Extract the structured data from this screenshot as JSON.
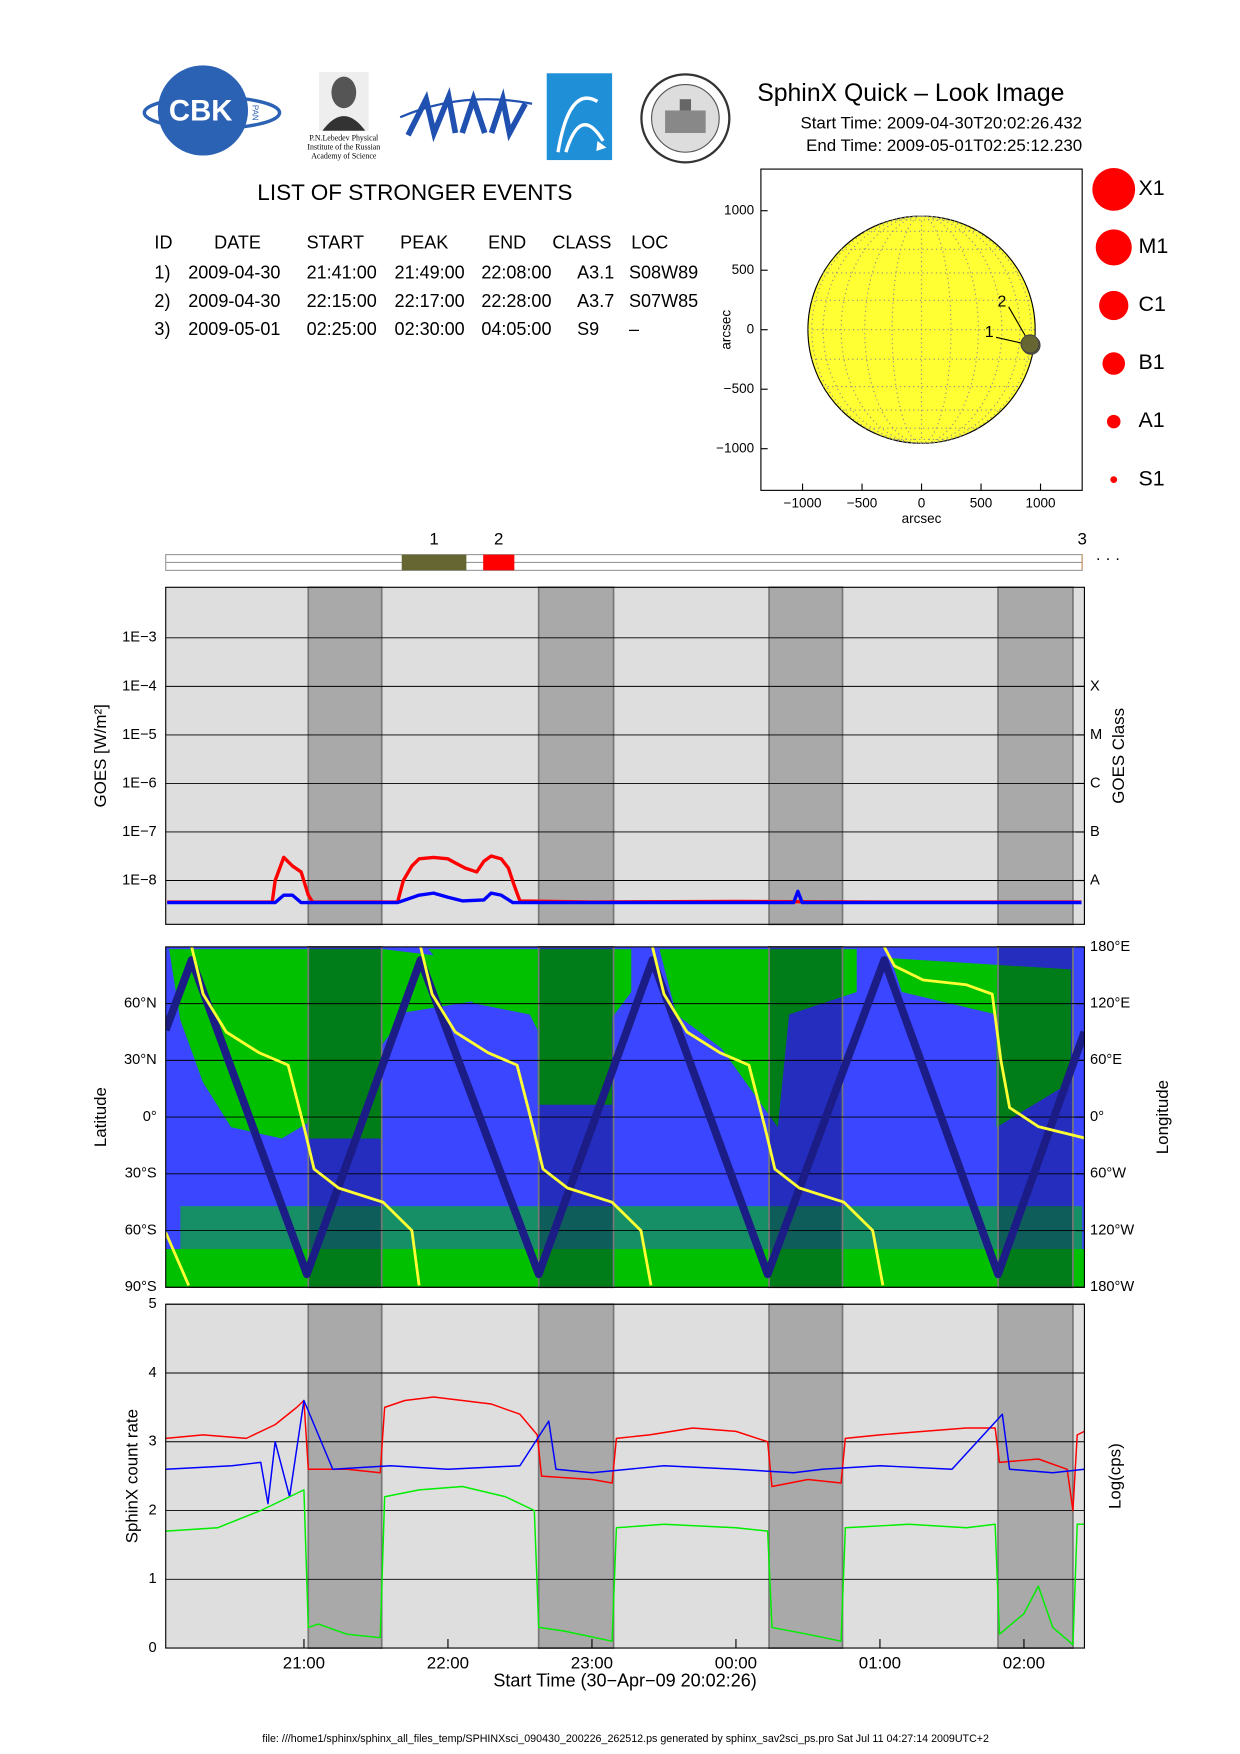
{
  "logos": {
    "cbk": "CBK",
    "pan": "PAN",
    "lebedev": [
      "P.N.Lebedev Physical",
      "Institute of the Russian",
      "Academy of Science"
    ]
  },
  "header": {
    "title": "SphinX Quick – Look Image",
    "start_time": "Start Time: 2009-04-30T20:02:26.432",
    "end_time": "End Time: 2009-05-01T02:25:12.230"
  },
  "events": {
    "title": "LIST OF STRONGER EVENTS",
    "columns": [
      "ID",
      "DATE",
      "START",
      "PEAK",
      "END",
      "CLASS",
      "LOC"
    ],
    "rows": [
      {
        "color": "#666633",
        "cells": [
          "1)",
          "2009-04-30",
          "21:41:00",
          "21:49:00",
          "22:08:00",
          "A3.1",
          "S08W89"
        ]
      },
      {
        "color": "#ff0000",
        "cells": [
          "2)",
          "2009-04-30",
          "22:15:00",
          "22:17:00",
          "22:28:00",
          "A3.7",
          "S07W85"
        ]
      },
      {
        "color": "#ff8000",
        "cells": [
          "3)",
          "2009-05-01",
          "02:25:00",
          "02:30:00",
          "04:05:00",
          "S9",
          "–"
        ]
      }
    ]
  },
  "chart_data": [
    {
      "type": "scatter",
      "xlabel": "arcsec",
      "ylabel": "arcsec",
      "xlim": [
        -1350,
        1350
      ],
      "ylim": [
        -1350,
        1350
      ],
      "xticks": [
        {
          "value": -1000,
          "label": "−1000"
        },
        {
          "value": -500,
          "label": "−500"
        },
        0,
        500,
        1000
      ],
      "yticks": [
        {
          "value": -1000,
          "label": "−1000"
        },
        {
          "value": -500,
          "label": "−500"
        },
        0,
        500,
        1000
      ],
      "sun_radius": 955,
      "sun_color": "#ffff33",
      "points": {
        "x": [
          920,
          912
        ],
        "y": [
          -130,
          -120
        ],
        "labels": [
          "1",
          "2"
        ],
        "color": "#666633"
      },
      "size_legend": [
        "X1",
        "M1",
        "C1",
        "B1",
        "A1",
        "S1"
      ],
      "legend_color": "#ff0000"
    },
    {
      "type": "timeline",
      "xlim": [
        20.04,
        26.42
      ],
      "events": [
        {
          "label": "1",
          "start": 21.683,
          "end": 22.133,
          "color": "#666633"
        },
        {
          "label": "2",
          "start": 22.25,
          "end": 22.467,
          "color": "#ff0000"
        },
        {
          "label": "3",
          "start": 26.417,
          "end": 28.083,
          "color": "#ff8000"
        }
      ],
      "more": "· · ·"
    },
    {
      "type": "line",
      "log": true,
      "ylabel": "GOES [W/m²]",
      "y2label": "GOES Class",
      "xlim": [
        20.04,
        26.42
      ],
      "ylim": [
        1.25e-09,
        0.011
      ],
      "y2lim": [
        1.25e-09,
        0.011
      ],
      "yticks": [
        {
          "value": 1e-08,
          "label": "1E−8"
        },
        {
          "value": 1e-07,
          "label": "1E−7"
        },
        {
          "value": 1e-06,
          "label": "1E−6"
        },
        {
          "value": 1e-05,
          "label": "1E−5"
        },
        {
          "value": 0.0001,
          "label": "1E−4"
        },
        {
          "value": 0.001,
          "label": "1E−3"
        }
      ],
      "y2ticks": [
        {
          "value": 1e-08,
          "label": "A"
        },
        {
          "value": 1e-07,
          "label": "B"
        },
        {
          "value": 1e-06,
          "label": "C"
        },
        {
          "value": 1e-05,
          "label": "M"
        },
        {
          "value": 0.0001,
          "label": "X"
        }
      ],
      "background": "#dedede",
      "shade_color": "#a9a9a9",
      "grid_color": "#000000",
      "shaded": [
        [
          21.03,
          21.54
        ],
        [
          22.63,
          23.15
        ],
        [
          24.23,
          24.74
        ],
        [
          25.82,
          26.34
        ]
      ],
      "series": [
        {
          "color": "#ff0000",
          "x": [
            20.05,
            20.78,
            20.8,
            20.86,
            20.92,
            20.98,
            21.03,
            21.06,
            21.65,
            21.69,
            21.75,
            21.8,
            21.9,
            22.0,
            22.05,
            22.12,
            22.2,
            22.25,
            22.3,
            22.37,
            22.42,
            22.46,
            22.5,
            23.0,
            24.0,
            25.0,
            26.4
          ],
          "values": [
            3.6e-09,
            3.6e-09,
            1e-08,
            3e-08,
            2e-08,
            1.5e-08,
            5e-09,
            3.6e-09,
            3.6e-09,
            1e-08,
            2e-08,
            2.8e-08,
            3e-08,
            2.8e-08,
            2.3e-08,
            1.8e-08,
            1.5e-08,
            2.5e-08,
            3.2e-08,
            2.8e-08,
            1.8e-08,
            8e-09,
            3.8e-09,
            3.6e-09,
            3.7e-09,
            3.6e-09,
            3.6e-09
          ]
        },
        {
          "color": "#0000ff",
          "x": [
            20.05,
            20.8,
            20.86,
            20.92,
            20.98,
            21.65,
            21.8,
            21.9,
            22.0,
            22.1,
            22.25,
            22.3,
            22.37,
            22.45,
            24.0,
            24.4,
            24.43,
            24.46,
            26.4
          ],
          "values": [
            3.5e-09,
            3.5e-09,
            5e-09,
            5e-09,
            3.5e-09,
            3.5e-09,
            5e-09,
            5.5e-09,
            4.5e-09,
            3.8e-09,
            4e-09,
            5.5e-09,
            5e-09,
            3.5e-09,
            3.5e-09,
            3.5e-09,
            6e-09,
            3.5e-09,
            3.5e-09
          ]
        }
      ]
    },
    {
      "type": "line",
      "ylabel": "Latitude",
      "y2label": "Longitude",
      "xlim": [
        20.04,
        26.42
      ],
      "ylim": [
        -90,
        90
      ],
      "y2lim": [
        -180,
        180
      ],
      "yticks": [
        {
          "value": -90,
          "label": "90°S"
        },
        {
          "value": -60,
          "label": "60°S"
        },
        {
          "value": -30,
          "label": "30°S"
        },
        {
          "value": 0,
          "label": "0°"
        },
        {
          "value": 30,
          "label": "30°N"
        },
        {
          "value": 60,
          "label": "60°N"
        }
      ],
      "y2ticks": [
        {
          "value": -180,
          "label": "180°W"
        },
        {
          "value": -120,
          "label": "120°W"
        },
        {
          "value": -60,
          "label": "60°W"
        },
        {
          "value": 0,
          "label": "0°"
        },
        {
          "value": 60,
          "label": "60°E"
        },
        {
          "value": 120,
          "label": "120°E"
        },
        {
          "value": 180,
          "label": "180°E"
        }
      ],
      "shade_color": "rgba(0,0,70,0.35)",
      "grid_color": "#000000",
      "shaded": [
        [
          21.03,
          21.54
        ],
        [
          22.63,
          23.15
        ],
        [
          24.23,
          24.74
        ],
        [
          25.82,
          26.34
        ]
      ],
      "series": [
        {
          "color": "#1c1c86",
          "x": [
            20.04,
            20.22,
            21.02,
            21.81,
            22.63,
            23.42,
            24.22,
            25.03,
            25.82,
            26.42
          ],
          "values": [
            46,
            83,
            -83,
            83,
            -83,
            83,
            -83,
            83,
            -83,
            45
          ]
        },
        {
          "color": "#ffff33",
          "axis": "y2",
          "x": [
            20.04,
            20.12,
            20.2,
            20.21,
            20.22,
            20.3,
            20.46,
            20.69,
            20.89,
            21.0,
            21.07,
            21.24,
            21.55,
            21.75,
            21.8,
            21.805,
            21.81,
            21.89,
            22.05,
            22.28,
            22.48,
            22.59,
            22.66,
            22.83,
            23.14,
            23.34,
            23.41,
            23.415,
            23.42,
            23.5,
            23.66,
            23.89,
            24.09,
            24.2,
            24.27,
            24.44,
            24.75,
            24.95,
            25.02,
            25.025,
            25.03,
            25.1,
            25.3,
            25.6,
            25.78,
            25.84,
            25.9,
            26.1,
            26.42
          ],
          "values": [
            -122,
            -150,
            -178,
            null,
            180,
            130,
            90,
            68,
            55,
            -10,
            -55,
            -75,
            -90,
            -120,
            -178,
            null,
            180,
            130,
            90,
            68,
            55,
            -10,
            -55,
            -75,
            -90,
            -120,
            -178,
            null,
            180,
            130,
            90,
            68,
            55,
            -10,
            -55,
            -75,
            -90,
            -120,
            -178,
            null,
            180,
            160,
            145,
            140,
            130,
            60,
            10,
            -10,
            -22
          ]
        }
      ]
    },
    {
      "type": "line",
      "ylabel": "SphinX count rate",
      "y2label": "Log(cps)",
      "xlabel": "Start Time (30−Apr−09 20:02:26)",
      "xlim": [
        20.04,
        26.42
      ],
      "ylim": [
        0,
        5
      ],
      "yticks": [
        0,
        1,
        2,
        3,
        4,
        5
      ],
      "xticks": [
        {
          "value": 21,
          "label": "21:00"
        },
        {
          "value": 22,
          "label": "22:00"
        },
        {
          "value": 23,
          "label": "23:00"
        },
        {
          "value": 24,
          "label": "00:00"
        },
        {
          "value": 25,
          "label": "01:00"
        },
        {
          "value": 26,
          "label": "02:00"
        }
      ],
      "background": "#dedede",
      "shade_color": "#a9a9a9",
      "grid_color": "#000000",
      "shaded": [
        [
          21.03,
          21.54
        ],
        [
          22.63,
          23.15
        ],
        [
          24.23,
          24.74
        ],
        [
          25.82,
          26.34
        ]
      ],
      "series": [
        {
          "color": "#ff0000",
          "x": [
            20.04,
            20.3,
            20.6,
            20.8,
            20.95,
            21.0,
            21.03,
            21.3,
            21.53,
            21.56,
            21.7,
            21.9,
            22.1,
            22.3,
            22.5,
            22.62,
            22.65,
            23.0,
            23.14,
            23.17,
            23.4,
            23.7,
            24.0,
            24.22,
            24.25,
            24.5,
            24.73,
            24.76,
            25.0,
            25.3,
            25.6,
            25.8,
            25.83,
            26.1,
            26.3,
            26.34,
            26.37,
            26.42
          ],
          "values": [
            3.05,
            3.1,
            3.05,
            3.25,
            3.5,
            3.6,
            2.6,
            2.6,
            2.55,
            3.5,
            3.6,
            3.65,
            3.6,
            3.55,
            3.4,
            3.1,
            2.5,
            2.45,
            2.4,
            3.05,
            3.1,
            3.2,
            3.15,
            3.0,
            2.35,
            2.45,
            2.4,
            3.05,
            3.1,
            3.15,
            3.2,
            3.2,
            2.7,
            2.75,
            2.6,
            2.0,
            3.1,
            3.15
          ]
        },
        {
          "color": "#0000ff",
          "x": [
            20.04,
            20.5,
            20.7,
            20.75,
            20.8,
            20.9,
            21.0,
            21.2,
            21.6,
            22.0,
            22.5,
            22.7,
            22.75,
            23.0,
            23.5,
            24.0,
            24.4,
            24.6,
            25.0,
            25.5,
            25.85,
            25.9,
            26.2,
            26.42
          ],
          "values": [
            2.6,
            2.65,
            2.7,
            2.1,
            3.0,
            2.2,
            3.6,
            2.6,
            2.65,
            2.6,
            2.65,
            3.3,
            2.6,
            2.55,
            2.65,
            2.6,
            2.55,
            2.6,
            2.65,
            2.6,
            3.4,
            2.6,
            2.55,
            2.6
          ]
        },
        {
          "color": "#00ee00",
          "x": [
            20.04,
            20.4,
            20.7,
            20.9,
            21.0,
            21.03,
            21.1,
            21.3,
            21.53,
            21.56,
            21.8,
            22.1,
            22.4,
            22.6,
            22.63,
            22.8,
            23.14,
            23.17,
            23.5,
            24.0,
            24.22,
            24.25,
            24.5,
            24.73,
            24.76,
            25.2,
            25.6,
            25.8,
            25.83,
            26.0,
            26.1,
            26.2,
            26.34,
            26.37,
            26.42
          ],
          "values": [
            1.7,
            1.75,
            2.0,
            2.2,
            2.3,
            0.3,
            0.35,
            0.2,
            0.15,
            2.2,
            2.3,
            2.35,
            2.2,
            2.0,
            0.3,
            0.25,
            0.1,
            1.75,
            1.8,
            1.75,
            1.7,
            0.3,
            0.2,
            0.1,
            1.75,
            1.8,
            1.75,
            1.8,
            0.2,
            0.5,
            0.9,
            0.3,
            0.05,
            1.8,
            1.8
          ]
        }
      ]
    }
  ],
  "footer": "file: ///home1/sphinx/sphinx_all_files_temp/SPHINXsci_090430_200226_262512.ps generated by sphinx_sav2sci_ps.pro Sat Jul 11 04:27:14 2009UTC+2"
}
